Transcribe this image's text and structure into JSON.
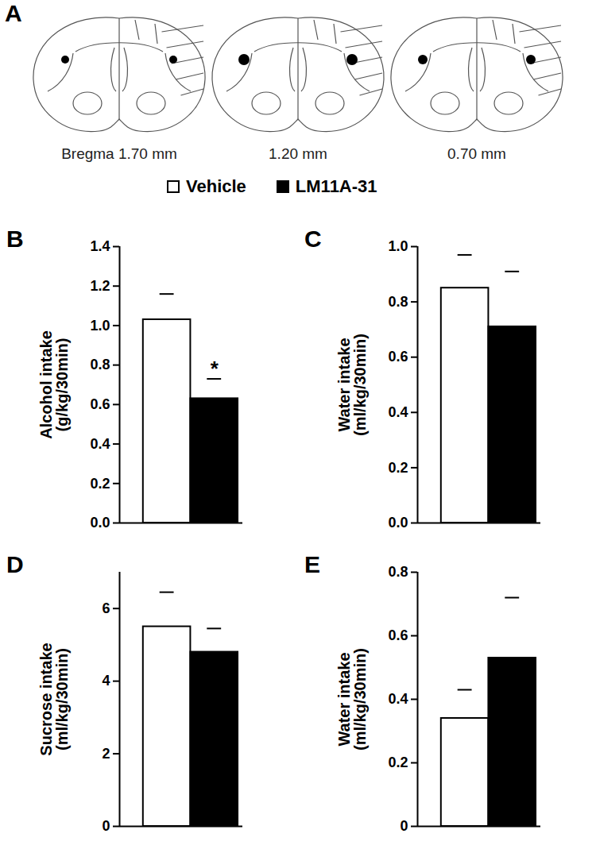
{
  "panel_a": {
    "label": "A",
    "sections": [
      "Bregma 1.70 mm",
      "1.20 mm",
      "0.70 mm"
    ]
  },
  "chart_data": [
    {
      "type": "bar",
      "panel": "B",
      "ylabel": "Alcohol intake\n(g/kg/30min)",
      "categories": [
        null
      ],
      "series": [
        {
          "name": "Vehicle",
          "color": "#ffffff",
          "values": [
            1.03
          ],
          "errors": [
            0.13
          ]
        },
        {
          "name": "LM11A-31",
          "color": "#000000",
          "values": [
            0.63
          ],
          "errors": [
            0.1
          ]
        }
      ],
      "ylim": [
        0,
        1.4
      ],
      "yticks": [
        {
          "value": 0,
          "label": "0.0"
        },
        0.2,
        0.4,
        0.6,
        0.8,
        {
          "value": 1,
          "label": "1.0"
        },
        1.2,
        1.4
      ],
      "annotations": [
        {
          "series": "LM11A-31",
          "text": "*"
        }
      ]
    },
    {
      "type": "bar",
      "panel": "C",
      "ylabel": "Water intake\n(ml/kg/30min)",
      "categories": [
        null
      ],
      "series": [
        {
          "name": "Vehicle",
          "color": "#ffffff",
          "values": [
            0.85
          ],
          "errors": [
            0.12
          ]
        },
        {
          "name": "LM11A-31",
          "color": "#000000",
          "values": [
            0.71
          ],
          "errors": [
            0.2
          ]
        }
      ],
      "ylim": [
        0,
        1
      ],
      "yticks": [
        {
          "value": 0,
          "label": "0.0"
        },
        0.2,
        0.4,
        0.6,
        0.8,
        {
          "value": 1,
          "label": "1.0"
        }
      ]
    },
    {
      "type": "bar",
      "panel": "D",
      "ylabel": "Sucrose intake\n(ml/kg/30min)",
      "categories": [
        null
      ],
      "series": [
        {
          "name": "Vehicle",
          "color": "#ffffff",
          "values": [
            5.5
          ],
          "errors": [
            0.95
          ]
        },
        {
          "name": "LM11A-31",
          "color": "#000000",
          "values": [
            4.8
          ],
          "errors": [
            0.65
          ]
        }
      ],
      "ylim": [
        0,
        7
      ],
      "yticks": [
        0,
        2,
        4,
        6
      ]
    },
    {
      "type": "bar",
      "panel": "E",
      "ylabel": "Water intake\n(ml/kg/30min)",
      "categories": [
        null
      ],
      "series": [
        {
          "name": "Vehicle",
          "color": "#ffffff",
          "values": [
            0.34
          ],
          "errors": [
            0.09
          ]
        },
        {
          "name": "LM11A-31",
          "color": "#000000",
          "values": [
            0.53
          ],
          "errors": [
            0.19
          ]
        }
      ],
      "ylim": [
        0,
        0.8
      ],
      "yticks": [
        0,
        0.2,
        0.4,
        0.6,
        0.8
      ]
    }
  ]
}
